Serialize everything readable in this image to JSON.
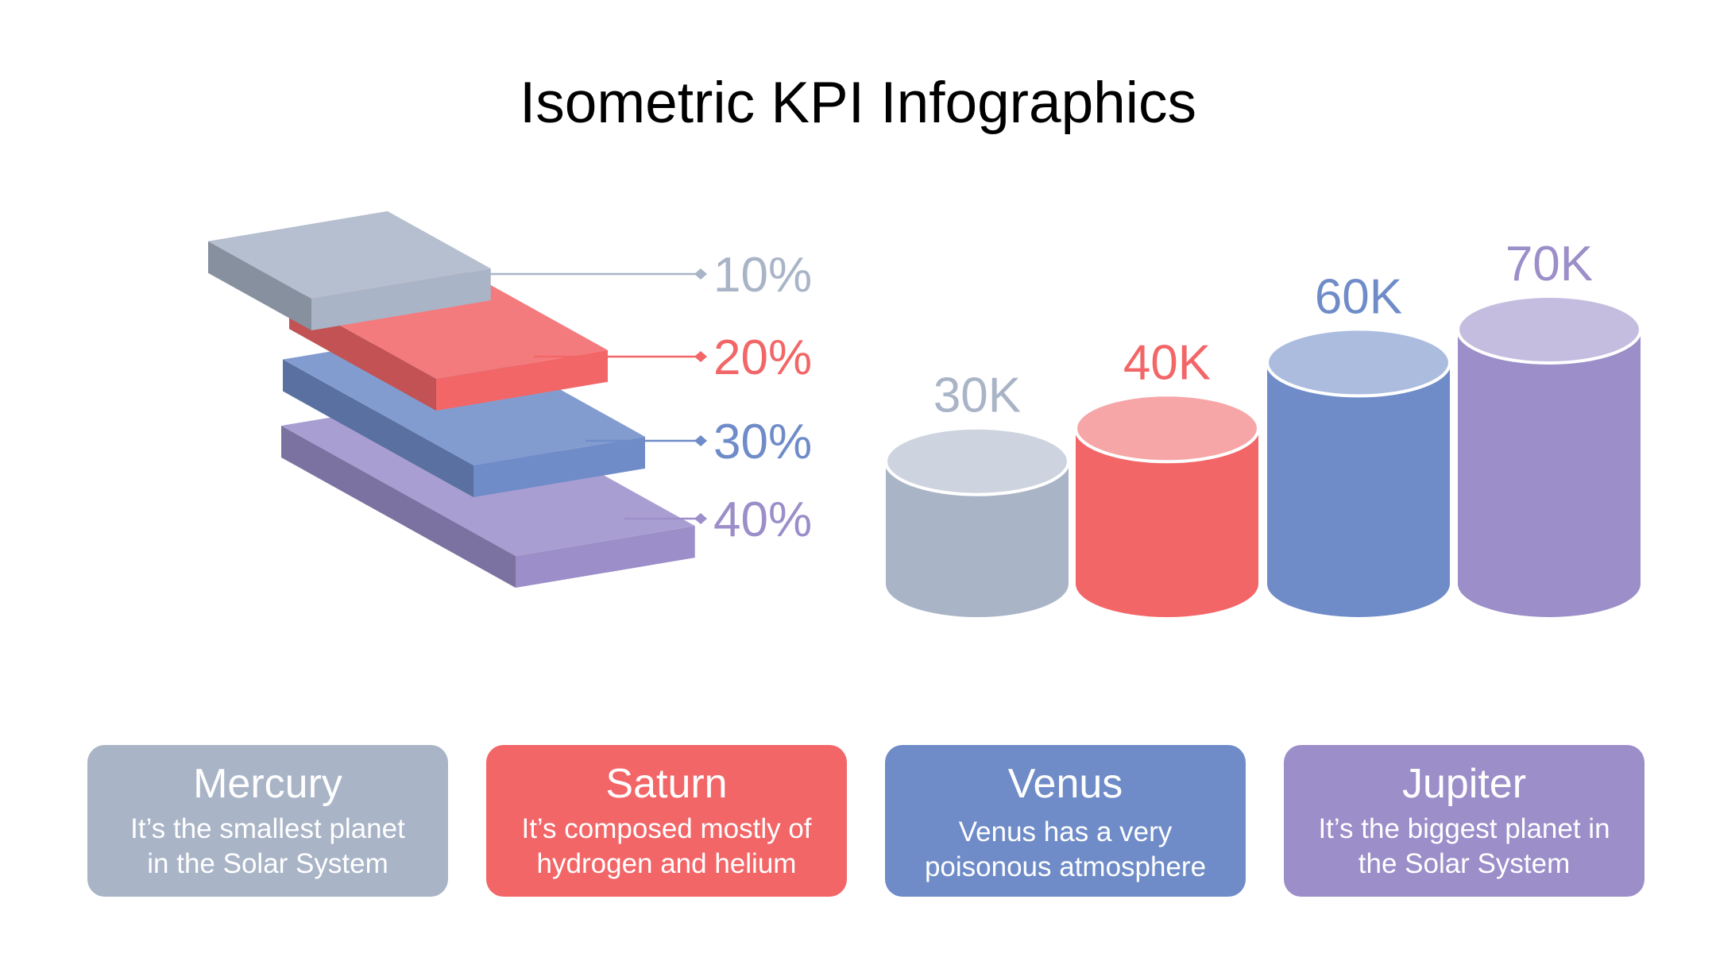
{
  "title": "Isometric KPI Infographics",
  "colors": {
    "gray": "#a9b4c7",
    "red": "#f26668",
    "blue": "#6f8cc8",
    "purple": "#9b8ec9"
  },
  "chart_data": [
    {
      "type": "bar",
      "subtype": "isometric-stacked-slabs",
      "values": [
        10,
        20,
        30,
        40
      ],
      "labels": [
        "10%",
        "20%",
        "30%",
        "40%"
      ],
      "colors": [
        "#a9b4c7",
        "#f26668",
        "#6f8cc8",
        "#9b8ec9"
      ]
    },
    {
      "type": "bar",
      "subtype": "cylinders",
      "values": [
        30000,
        40000,
        60000,
        70000
      ],
      "labels": [
        "30K",
        "40K",
        "60K",
        "70K"
      ],
      "colors": [
        "#a9b4c7",
        "#f26668",
        "#6f8cc8",
        "#9b8ec9"
      ]
    }
  ],
  "cards": [
    {
      "title": "Mercury",
      "desc1": "It’s the smallest planet",
      "desc2": "in the Solar System",
      "color": "#a9b4c7"
    },
    {
      "title": "Saturn",
      "desc1": "It’s composed mostly of",
      "desc2": "hydrogen and helium",
      "color": "#f26668"
    },
    {
      "title": "Venus",
      "desc1": "Venus has a very",
      "desc2": "poisonous atmosphere",
      "color": "#6f8cc8"
    },
    {
      "title": "Jupiter",
      "desc1": "It’s the biggest planet in",
      "desc2": "the Solar System",
      "color": "#9b8ec9"
    }
  ]
}
